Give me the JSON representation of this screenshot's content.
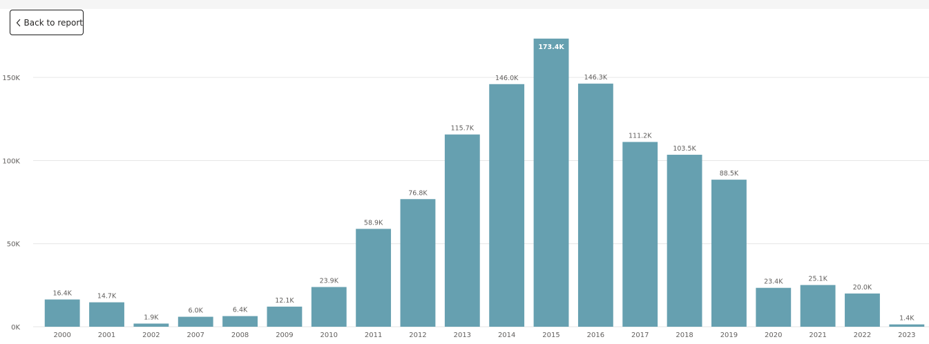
{
  "header": {
    "back_label": "Back to report"
  },
  "colors": {
    "bar": "#66a0b0",
    "grid": "#e6e6e6",
    "text": "#605e5c"
  },
  "chart_data": {
    "type": "bar",
    "title": "",
    "xlabel": "",
    "ylabel": "",
    "ylim": [
      0,
      180000
    ],
    "yticks": [
      0,
      50000,
      100000,
      150000
    ],
    "ytick_labels": [
      "0K",
      "50K",
      "100K",
      "150K"
    ],
    "grid": true,
    "categories": [
      "2000",
      "2001",
      "2002",
      "2007",
      "2008",
      "2009",
      "2010",
      "2011",
      "2012",
      "2013",
      "2014",
      "2015",
      "2016",
      "2017",
      "2018",
      "2019",
      "2020",
      "2021",
      "2022",
      "2023"
    ],
    "values": [
      16400,
      14700,
      1900,
      6000,
      6400,
      12100,
      23900,
      58900,
      76800,
      115700,
      146000,
      173400,
      146300,
      111200,
      103500,
      88500,
      23400,
      25100,
      20000,
      1400
    ],
    "data_labels": [
      "16.4K",
      "14.7K",
      "1.9K",
      "6.0K",
      "6.4K",
      "12.1K",
      "23.9K",
      "58.9K",
      "76.8K",
      "115.7K",
      "146.0K",
      "173.4K",
      "146.3K",
      "111.2K",
      "103.5K",
      "88.5K",
      "23.4K",
      "25.1K",
      "20.0K",
      "1.4K"
    ]
  }
}
